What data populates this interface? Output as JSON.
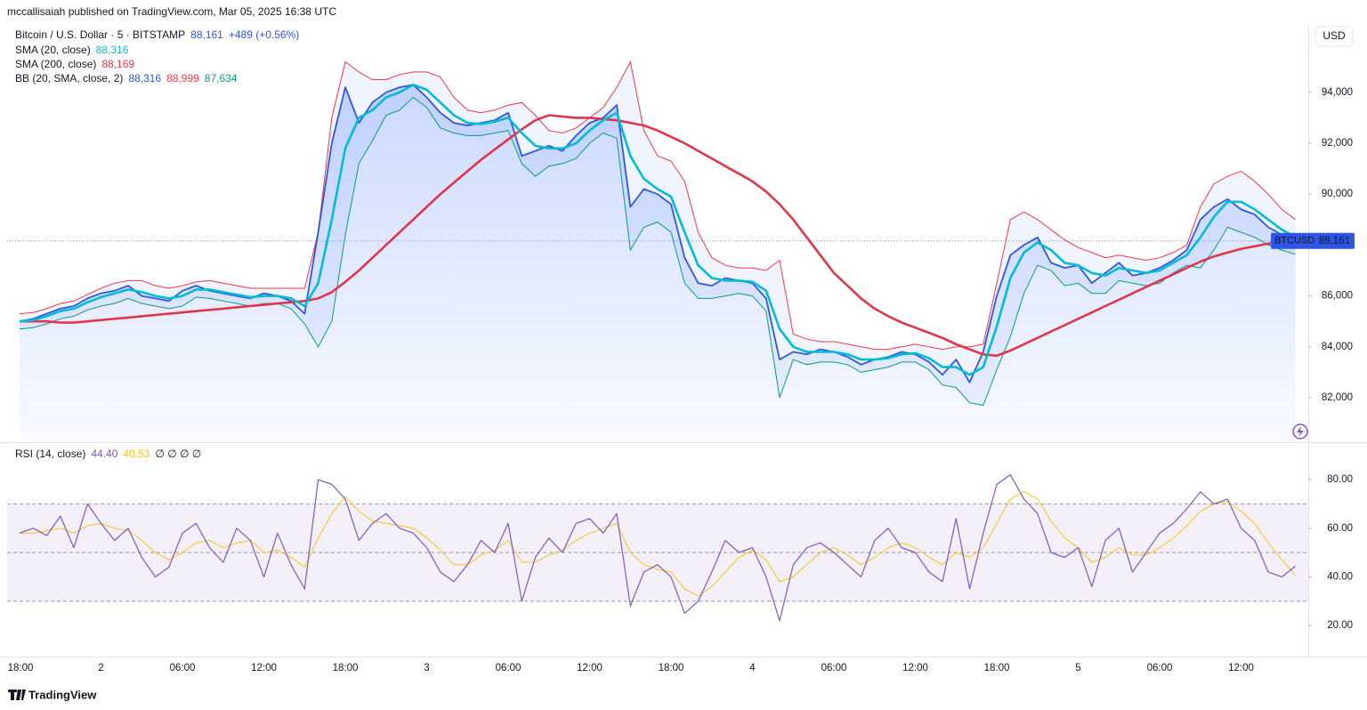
{
  "header": "mccallisaiah published on TradingView.com, Mar 05, 2025 16:38 UTC",
  "footer": "TradingView",
  "currency_button": "USD",
  "chart_data": [
    {
      "type": "line",
      "ticker": "BTCUSD",
      "categories": [
        "18:00",
        null,
        null,
        null,
        null,
        null,
        "2",
        null,
        null,
        null,
        null,
        null,
        "06:00",
        null,
        null,
        null,
        null,
        null,
        "12:00",
        null,
        null,
        null,
        null,
        null,
        "18:00",
        null,
        null,
        null,
        null,
        null,
        "3",
        null,
        null,
        null,
        null,
        null,
        "06:00",
        null,
        null,
        null,
        null,
        null,
        "12:00",
        null,
        null,
        null,
        null,
        null,
        "18:00",
        null,
        null,
        null,
        null,
        null,
        "4",
        null,
        null,
        null,
        null,
        null,
        "06:00",
        null,
        null,
        null,
        null,
        null,
        "12:00",
        null,
        null,
        null,
        null,
        null,
        "18:00",
        null,
        null,
        null,
        null,
        null,
        "5",
        null,
        null,
        null,
        null,
        null,
        "06:00",
        null,
        null,
        null,
        null,
        null,
        "12:00",
        null,
        null,
        null,
        null
      ],
      "series": [
        {
          "name": "Bitcoin / U.S. Dollar · 5 · BITSTAMP",
          "last_label": "88,161",
          "change_label": "+489 (+0.56%)",
          "color": "#2f55e4",
          "values": [
            85000,
            85100,
            85300,
            85500,
            85600,
            85900,
            86100,
            86200,
            86400,
            86000,
            85900,
            85800,
            86200,
            86400,
            86200,
            86100,
            86000,
            85900,
            86100,
            86000,
            85800,
            85300,
            88500,
            92000,
            94200,
            92800,
            93600,
            94000,
            94200,
            94300,
            93800,
            93200,
            92800,
            92700,
            92800,
            92900,
            93200,
            91500,
            91700,
            91900,
            91700,
            92300,
            92800,
            93000,
            93500,
            89500,
            90200,
            90000,
            89600,
            87500,
            86500,
            86400,
            86700,
            86600,
            86500,
            85900,
            83500,
            83800,
            83700,
            83900,
            83800,
            83600,
            83300,
            83500,
            83600,
            83800,
            83700,
            83400,
            82900,
            83500,
            82600,
            83800,
            86000,
            87600,
            88000,
            88300,
            87300,
            87100,
            87200,
            86500,
            86900,
            87300,
            86800,
            86900,
            87100,
            87400,
            87800,
            89000,
            89500,
            89800,
            89400,
            89200,
            88700,
            88400,
            88161
          ]
        },
        {
          "name": "SMA (20, close)",
          "last_label": "88,316",
          "color": "#00bcd4",
          "values": [
            85000,
            85050,
            85200,
            85400,
            85500,
            85750,
            85950,
            86100,
            86250,
            86150,
            86000,
            85900,
            86000,
            86250,
            86250,
            86150,
            86050,
            85950,
            86000,
            86000,
            85900,
            85600,
            86500,
            89000,
            91800,
            93000,
            93300,
            93800,
            94000,
            94300,
            94100,
            93600,
            93100,
            92800,
            92750,
            92850,
            93000,
            92400,
            91900,
            91800,
            91800,
            92000,
            92500,
            92900,
            93200,
            91500,
            90600,
            90200,
            89900,
            88500,
            87200,
            86700,
            86600,
            86600,
            86550,
            86200,
            84700,
            84000,
            83800,
            83800,
            83800,
            83700,
            83500,
            83500,
            83550,
            83700,
            83750,
            83550,
            83200,
            83200,
            82900,
            83200,
            84800,
            86700,
            87700,
            88100,
            87800,
            87300,
            87200,
            86900,
            86800,
            87100,
            87000,
            86900,
            87000,
            87300,
            87600,
            88300,
            89100,
            89700,
            89700,
            89400,
            89000,
            88600,
            88316
          ]
        },
        {
          "name": "SMA (200, close)",
          "last_label": "88,169",
          "color": "#e0364b",
          "values": [
            85000,
            85000,
            85000,
            84950,
            84950,
            85000,
            85050,
            85100,
            85150,
            85200,
            85250,
            85300,
            85350,
            85400,
            85450,
            85500,
            85550,
            85600,
            85650,
            85700,
            85750,
            85800,
            85900,
            86150,
            86550,
            87000,
            87500,
            88000,
            88500,
            89000,
            89500,
            90000,
            90450,
            90900,
            91350,
            91750,
            92150,
            92550,
            92900,
            93100,
            93050,
            93000,
            93000,
            92950,
            92900,
            92800,
            92700,
            92500,
            92250,
            92000,
            91700,
            91400,
            91100,
            90800,
            90500,
            90100,
            89600,
            89000,
            88300,
            87600,
            86900,
            86400,
            85900,
            85500,
            85200,
            84950,
            84750,
            84550,
            84350,
            84100,
            83900,
            83700,
            83650,
            83850,
            84100,
            84350,
            84600,
            84850,
            85100,
            85350,
            85600,
            85850,
            86100,
            86350,
            86600,
            86850,
            87100,
            87350,
            87550,
            87700,
            87850,
            87950,
            88050,
            88120,
            88169
          ]
        }
      ],
      "bands": {
        "name": "BB (20, SMA, close, 2)",
        "labels": [
          "88,316",
          "88,999",
          "87,634"
        ],
        "fill": "rgba(41,98,255,0.07)",
        "upper": {
          "color": "#f23645",
          "values": [
            85300,
            85350,
            85500,
            85700,
            85800,
            86050,
            86300,
            86500,
            86600,
            86600,
            86400,
            86300,
            86400,
            86550,
            86600,
            86500,
            86400,
            86300,
            86300,
            86300,
            86300,
            86300,
            88500,
            93000,
            95200,
            94800,
            94500,
            94500,
            94700,
            94800,
            94800,
            94600,
            93800,
            93300,
            93200,
            93300,
            93500,
            93600,
            93100,
            92500,
            92400,
            92600,
            93000,
            93400,
            94200,
            95200,
            92500,
            91500,
            91300,
            90500,
            88500,
            87500,
            87200,
            87100,
            87100,
            87000,
            87400,
            84500,
            84300,
            84200,
            84200,
            84100,
            84000,
            83900,
            83900,
            84000,
            84100,
            84000,
            83900,
            84000,
            84000,
            84100,
            86500,
            89000,
            89300,
            89000,
            88600,
            88200,
            87900,
            87700,
            87500,
            87600,
            87500,
            87400,
            87500,
            87700,
            88000,
            89500,
            90400,
            90700,
            90900,
            90500,
            90000,
            89400,
            88999
          ]
        },
        "lower": {
          "color": "#089981",
          "values": [
            84700,
            84750,
            84900,
            85100,
            85200,
            85450,
            85600,
            85700,
            85900,
            85700,
            85600,
            85500,
            85600,
            85950,
            85900,
            85800,
            85700,
            85600,
            85700,
            85700,
            85500,
            84900,
            84000,
            85000,
            88400,
            91200,
            92100,
            93100,
            93300,
            93800,
            93400,
            92600,
            92400,
            92300,
            92300,
            92400,
            92500,
            91200,
            90700,
            91100,
            91200,
            91400,
            92000,
            92400,
            92200,
            87800,
            88700,
            88900,
            88500,
            86500,
            85900,
            85900,
            86000,
            86100,
            86000,
            85400,
            82000,
            83500,
            83300,
            83400,
            83400,
            83300,
            83000,
            83100,
            83200,
            83400,
            83400,
            83100,
            82500,
            82400,
            81800,
            81700,
            83100,
            84400,
            86100,
            87200,
            87000,
            86400,
            86500,
            86100,
            86100,
            86600,
            86500,
            86400,
            86500,
            86900,
            87200,
            87100,
            87800,
            88700,
            88500,
            88300,
            88000,
            87800,
            87634
          ]
        }
      },
      "ylim": [
        80250,
        96650
      ],
      "yticks": [
        {
          "value": 82000,
          "label": "82,000"
        },
        {
          "value": 84000,
          "label": "84,000"
        },
        {
          "value": 86000,
          "label": "86,000"
        },
        {
          "value": 90000,
          "label": "90,000"
        },
        {
          "value": 92000,
          "label": "92,000"
        },
        {
          "value": 94000,
          "label": "94,000"
        }
      ],
      "grid": false
    },
    {
      "type": "line",
      "series": [
        {
          "name": "RSI (14, close)",
          "last_label": "44.40",
          "color": "#7e57c2",
          "values": [
            58,
            60,
            57,
            65,
            52,
            70,
            62,
            55,
            60,
            48,
            40,
            44,
            58,
            62,
            52,
            46,
            60,
            55,
            40,
            58,
            45,
            35,
            80,
            78,
            72,
            55,
            62,
            66,
            60,
            58,
            52,
            42,
            38,
            45,
            55,
            50,
            62,
            30,
            48,
            56,
            50,
            62,
            64,
            58,
            66,
            28,
            42,
            45,
            40,
            25,
            30,
            42,
            55,
            50,
            52,
            40,
            22,
            45,
            52,
            54,
            50,
            45,
            40,
            55,
            60,
            52,
            50,
            42,
            38,
            64,
            35,
            58,
            78,
            82,
            72,
            66,
            50,
            48,
            52,
            36,
            55,
            60,
            42,
            50,
            58,
            62,
            68,
            75,
            70,
            72,
            60,
            55,
            42,
            40,
            44.4
          ]
        },
        {
          "last_label": "40.53",
          "color": "#f5c518",
          "values": [
            58,
            58,
            59,
            60,
            58,
            61,
            62,
            60,
            59,
            55,
            50,
            47,
            50,
            54,
            55,
            52,
            54,
            55,
            50,
            51,
            48,
            44,
            56,
            66,
            73,
            67,
            63,
            62,
            61,
            60,
            56,
            51,
            45,
            45,
            49,
            51,
            55,
            46,
            46,
            49,
            51,
            55,
            58,
            60,
            62,
            50,
            45,
            43,
            42,
            35,
            32,
            36,
            42,
            48,
            51,
            47,
            38,
            40,
            45,
            50,
            52,
            49,
            45,
            48,
            52,
            54,
            52,
            48,
            45,
            50,
            48,
            52,
            62,
            72,
            75,
            72,
            63,
            56,
            52,
            46,
            48,
            52,
            49,
            49,
            52,
            56,
            61,
            67,
            70,
            71,
            67,
            62,
            54,
            47,
            40.53
          ]
        }
      ],
      "legend_extra": "∅ ∅ ∅ ∅",
      "band": [
        30,
        70
      ],
      "midline": 50,
      "band_color": "rgba(126,87,194,0.09)",
      "ylim": [
        7.2,
        94.3
      ],
      "yticks": [
        {
          "value": 20,
          "label": "20.00"
        },
        {
          "value": 40,
          "label": "40.00"
        },
        {
          "value": 60,
          "label": "60.00"
        },
        {
          "value": 80,
          "label": "80.00"
        }
      ],
      "grid": false
    }
  ]
}
